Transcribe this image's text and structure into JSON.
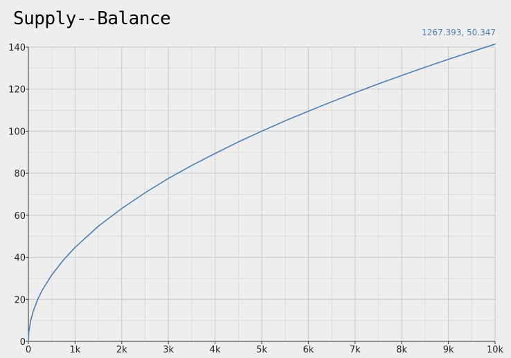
{
  "chart_data": {
    "type": "line",
    "title": "Supply--Balance",
    "xlabel": "",
    "ylabel": "",
    "xlim": [
      0,
      10000
    ],
    "ylim": [
      0,
      140
    ],
    "x_ticks": [
      0,
      1000,
      2000,
      3000,
      4000,
      5000,
      6000,
      7000,
      8000,
      9000,
      10000
    ],
    "x_tick_labels": [
      "0",
      "1k",
      "2k",
      "3k",
      "4k",
      "5k",
      "6k",
      "7k",
      "8k",
      "9k",
      "10k"
    ],
    "y_ticks": [
      0,
      20,
      40,
      60,
      80,
      100,
      120,
      140
    ],
    "y_tick_labels": [
      "0",
      "20",
      "40",
      "60",
      "80",
      "100",
      "120",
      "140"
    ],
    "grid": true,
    "series": [
      {
        "color": "#4a7fb5",
        "x": [
          0,
          10,
          50,
          100,
          200,
          300,
          500,
          750,
          1000,
          1500,
          2000,
          2500,
          3000,
          3500,
          4000,
          4500,
          5000,
          5500,
          6000,
          6500,
          7000,
          7500,
          8000,
          8500,
          9000,
          9500,
          10000
        ],
        "y": [
          0,
          4.5,
          10.0,
          14.1,
          20.0,
          24.5,
          31.6,
          38.7,
          44.7,
          54.8,
          63.2,
          70.7,
          77.5,
          83.7,
          89.4,
          94.9,
          100.0,
          104.9,
          109.5,
          114.0,
          118.3,
          122.5,
          126.5,
          130.4,
          134.2,
          137.8,
          141.4
        ]
      }
    ]
  },
  "readout": {
    "text": "1267.393, 50.347",
    "color": "#4a7fb5"
  },
  "colors": {
    "background": "#eeeeee",
    "grid_major": "#c8c8c8",
    "grid_minor": "#dcdcdc",
    "axis": "#333333"
  }
}
